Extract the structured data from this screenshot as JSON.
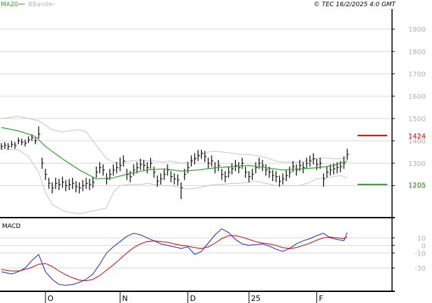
{
  "header": {
    "legend": [
      {
        "label": "MA20",
        "color": "#2aa02a"
      },
      {
        "label": "BBands",
        "color": "#b8b8b8"
      }
    ],
    "copyright": "© TEC 16/2/2025 4:0 GMT"
  },
  "colors": {
    "price_bar": "#000000",
    "ma20": "#2aa02a",
    "bbands": "#c4c4c4",
    "resistance": "#cc0000",
    "support": "#2aa02a",
    "macd": "#2020c0",
    "signal": "#cc0000",
    "grid": "#d8d8d8"
  },
  "chart_data": [
    {
      "type": "ohlc",
      "y_axis_labels": [
        "1900",
        "1800",
        "1700",
        "1600",
        "1500",
        "1400",
        "1300",
        "1200"
      ],
      "y_ticks": [
        1900,
        1800,
        1700,
        1600,
        1500,
        1400,
        1300,
        1200
      ],
      "ylim": [
        1060,
        1990
      ],
      "x_axis_labels": [
        "O",
        "N",
        "D",
        "25",
        "F"
      ],
      "x_ticks": [
        13,
        35,
        55,
        73,
        93
      ],
      "xlim": [
        0,
        115
      ],
      "levels": [
        {
          "label": "1424",
          "value": 1424,
          "color": "#cc0000"
        },
        {
          "label": "1205",
          "value": 1205,
          "color": "#2aa02a"
        }
      ],
      "bars": {
        "x": [
          0,
          1,
          2,
          3,
          4,
          5,
          6,
          7,
          8,
          9,
          10,
          11,
          12,
          13,
          14,
          15,
          16,
          17,
          18,
          19,
          20,
          21,
          22,
          23,
          24,
          25,
          26,
          27,
          28,
          29,
          30,
          31,
          32,
          33,
          34,
          35,
          36,
          37,
          38,
          39,
          40,
          41,
          42,
          43,
          44,
          45,
          46,
          47,
          48,
          49,
          50,
          51,
          52,
          53,
          54,
          55,
          56,
          57,
          58,
          59,
          60,
          61,
          62,
          63,
          64,
          65,
          66,
          67,
          68,
          69,
          70,
          71,
          72,
          73,
          74,
          75,
          76,
          77,
          78,
          79,
          80,
          81,
          82,
          83,
          84,
          85,
          86,
          87,
          88,
          89,
          90,
          91,
          92,
          93,
          94,
          95,
          96,
          97,
          98,
          99,
          100,
          101,
          102
        ],
        "close": [
          1375,
          1380,
          1375,
          1385,
          1380,
          1400,
          1395,
          1390,
          1405,
          1415,
          1400,
          1430,
          1300,
          1250,
          1210,
          1190,
          1210,
          1205,
          1215,
          1200,
          1205,
          1210,
          1195,
          1190,
          1200,
          1210,
          1205,
          1215,
          1260,
          1280,
          1270,
          1230,
          1250,
          1270,
          1280,
          1290,
          1310,
          1250,
          1240,
          1270,
          1280,
          1295,
          1290,
          1280,
          1300,
          1260,
          1220,
          1230,
          1250,
          1270,
          1240,
          1230,
          1225,
          1190,
          1250,
          1280,
          1310,
          1320,
          1335,
          1345,
          1330,
          1300,
          1310,
          1280,
          1290,
          1250,
          1240,
          1260,
          1275,
          1290,
          1280,
          1300,
          1260,
          1240,
          1250,
          1280,
          1300,
          1290,
          1270,
          1260,
          1245,
          1240,
          1220,
          1230,
          1245,
          1260,
          1285,
          1270,
          1290,
          1280,
          1300,
          1310,
          1320,
          1295,
          1300,
          1230,
          1260,
          1270,
          1275,
          1280,
          1285,
          1300,
          1340
        ],
        "high": [
          1390,
          1395,
          1390,
          1400,
          1395,
          1415,
          1410,
          1405,
          1420,
          1430,
          1415,
          1465,
          1325,
          1275,
          1235,
          1215,
          1235,
          1230,
          1240,
          1225,
          1230,
          1235,
          1220,
          1215,
          1225,
          1235,
          1230,
          1240,
          1285,
          1305,
          1295,
          1255,
          1275,
          1295,
          1305,
          1325,
          1335,
          1275,
          1265,
          1295,
          1305,
          1320,
          1315,
          1305,
          1325,
          1285,
          1245,
          1255,
          1275,
          1295,
          1265,
          1255,
          1250,
          1215,
          1275,
          1305,
          1335,
          1345,
          1360,
          1360,
          1355,
          1325,
          1335,
          1305,
          1315,
          1275,
          1265,
          1285,
          1300,
          1315,
          1305,
          1325,
          1285,
          1265,
          1275,
          1305,
          1325,
          1315,
          1295,
          1285,
          1270,
          1265,
          1245,
          1255,
          1270,
          1285,
          1310,
          1295,
          1315,
          1305,
          1325,
          1335,
          1345,
          1320,
          1325,
          1255,
          1285,
          1295,
          1300,
          1305,
          1310,
          1330,
          1365
        ],
        "low": [
          1360,
          1365,
          1360,
          1370,
          1365,
          1385,
          1380,
          1375,
          1390,
          1400,
          1385,
          1410,
          1275,
          1225,
          1185,
          1165,
          1185,
          1180,
          1190,
          1175,
          1180,
          1185,
          1170,
          1165,
          1175,
          1185,
          1180,
          1190,
          1235,
          1255,
          1245,
          1205,
          1225,
          1245,
          1255,
          1265,
          1285,
          1225,
          1215,
          1245,
          1255,
          1270,
          1265,
          1255,
          1275,
          1235,
          1195,
          1205,
          1225,
          1245,
          1215,
          1205,
          1200,
          1140,
          1225,
          1255,
          1285,
          1295,
          1310,
          1320,
          1305,
          1275,
          1285,
          1255,
          1265,
          1225,
          1215,
          1235,
          1250,
          1265,
          1255,
          1275,
          1235,
          1215,
          1225,
          1255,
          1275,
          1265,
          1245,
          1235,
          1220,
          1215,
          1195,
          1205,
          1220,
          1235,
          1260,
          1245,
          1265,
          1255,
          1275,
          1285,
          1295,
          1270,
          1275,
          1195,
          1235,
          1245,
          1250,
          1255,
          1260,
          1275,
          1315
        ]
      },
      "ma20": {
        "x": [
          0,
          5,
          10,
          13,
          18,
          23,
          28,
          33,
          38,
          43,
          48,
          53,
          58,
          63,
          68,
          73,
          78,
          83,
          88,
          93,
          98,
          102
        ],
        "values": [
          1460,
          1445,
          1420,
          1375,
          1320,
          1270,
          1230,
          1235,
          1255,
          1270,
          1275,
          1265,
          1270,
          1280,
          1285,
          1290,
          1280,
          1270,
          1275,
          1280,
          1290,
          1310
        ]
      },
      "bbands": {
        "x": [
          0,
          5,
          8,
          11,
          13,
          15,
          18,
          20,
          23,
          25,
          28,
          31,
          33,
          35,
          38,
          41,
          43,
          45,
          48,
          50,
          53,
          55,
          58,
          61,
          63,
          65,
          68,
          70,
          73,
          75,
          78,
          81,
          83,
          85,
          88,
          91,
          93,
          95,
          98,
          100,
          102
        ],
        "upper": [
          1500,
          1510,
          1500,
          1490,
          1470,
          1450,
          1440,
          1445,
          1450,
          1440,
          1380,
          1320,
          1305,
          1300,
          1310,
          1315,
          1310,
          1310,
          1305,
          1310,
          1300,
          1305,
          1330,
          1350,
          1355,
          1350,
          1345,
          1340,
          1340,
          1335,
          1325,
          1310,
          1305,
          1305,
          1305,
          1315,
          1320,
          1325,
          1320,
          1320,
          1330
        ],
        "lower": [
          1365,
          1360,
          1330,
          1260,
          1170,
          1115,
          1090,
          1080,
          1075,
          1080,
          1090,
          1100,
          1170,
          1200,
          1205,
          1205,
          1210,
          1205,
          1200,
          1200,
          1190,
          1185,
          1190,
          1200,
          1205,
          1205,
          1210,
          1210,
          1215,
          1220,
          1210,
          1200,
          1200,
          1200,
          1200,
          1215,
          1230,
          1235,
          1240,
          1245,
          1235
        ]
      }
    },
    {
      "type": "line",
      "title": "MACD",
      "y_axis_labels": [
        "10",
        "0",
        "-10",
        "-30"
      ],
      "y_ticks": [
        10,
        0,
        -10,
        -30
      ],
      "ylim": [
        -60,
        35
      ],
      "x_axis_labels": [
        "O",
        "N",
        "D",
        "25",
        "F"
      ],
      "x_ticks": [
        13,
        35,
        55,
        73,
        93
      ],
      "xlim": [
        0,
        115
      ],
      "series": [
        {
          "color": "#2020c0",
          "x": [
            0,
            3,
            5,
            7,
            9,
            11,
            13,
            15,
            17,
            19,
            21,
            23,
            25,
            27,
            29,
            31,
            33,
            35,
            37,
            39,
            41,
            43,
            45,
            47,
            49,
            51,
            53,
            55,
            57,
            59,
            61,
            63,
            65,
            67,
            69,
            71,
            73,
            75,
            77,
            79,
            81,
            83,
            85,
            87,
            89,
            91,
            93,
            95,
            97,
            99,
            101,
            102
          ],
          "values": [
            -35,
            -38,
            -35,
            -30,
            -20,
            -12,
            -35,
            -45,
            -52,
            -53,
            -52,
            -49,
            -45,
            -38,
            -25,
            -10,
            -2,
            5,
            12,
            16,
            14,
            10,
            6,
            2,
            0,
            -2,
            -4,
            -2,
            -12,
            -8,
            3,
            14,
            22,
            17,
            8,
            2,
            0,
            1,
            2,
            -1,
            -5,
            -8,
            -4,
            2,
            6,
            9,
            13,
            16,
            10,
            8,
            6,
            17
          ]
        },
        {
          "color": "#cc0000",
          "x": [
            0,
            3,
            5,
            7,
            9,
            11,
            13,
            15,
            17,
            19,
            21,
            23,
            25,
            27,
            29,
            31,
            33,
            35,
            37,
            39,
            41,
            43,
            45,
            47,
            49,
            51,
            53,
            55,
            57,
            59,
            61,
            63,
            65,
            67,
            69,
            71,
            73,
            75,
            77,
            79,
            81,
            83,
            85,
            87,
            89,
            91,
            93,
            95,
            97,
            99,
            101,
            102
          ],
          "values": [
            -32,
            -34,
            -34,
            -32,
            -29,
            -25,
            -24,
            -28,
            -34,
            -39,
            -43,
            -46,
            -47,
            -45,
            -40,
            -33,
            -26,
            -18,
            -10,
            -3,
            2,
            5,
            6,
            5,
            4,
            2,
            0,
            -1,
            -3,
            -4,
            -2,
            3,
            9,
            13,
            13,
            11,
            8,
            5,
            3,
            2,
            0,
            -3,
            -4,
            -3,
            0,
            3,
            7,
            10,
            11,
            10,
            9,
            11
          ]
        }
      ]
    }
  ]
}
